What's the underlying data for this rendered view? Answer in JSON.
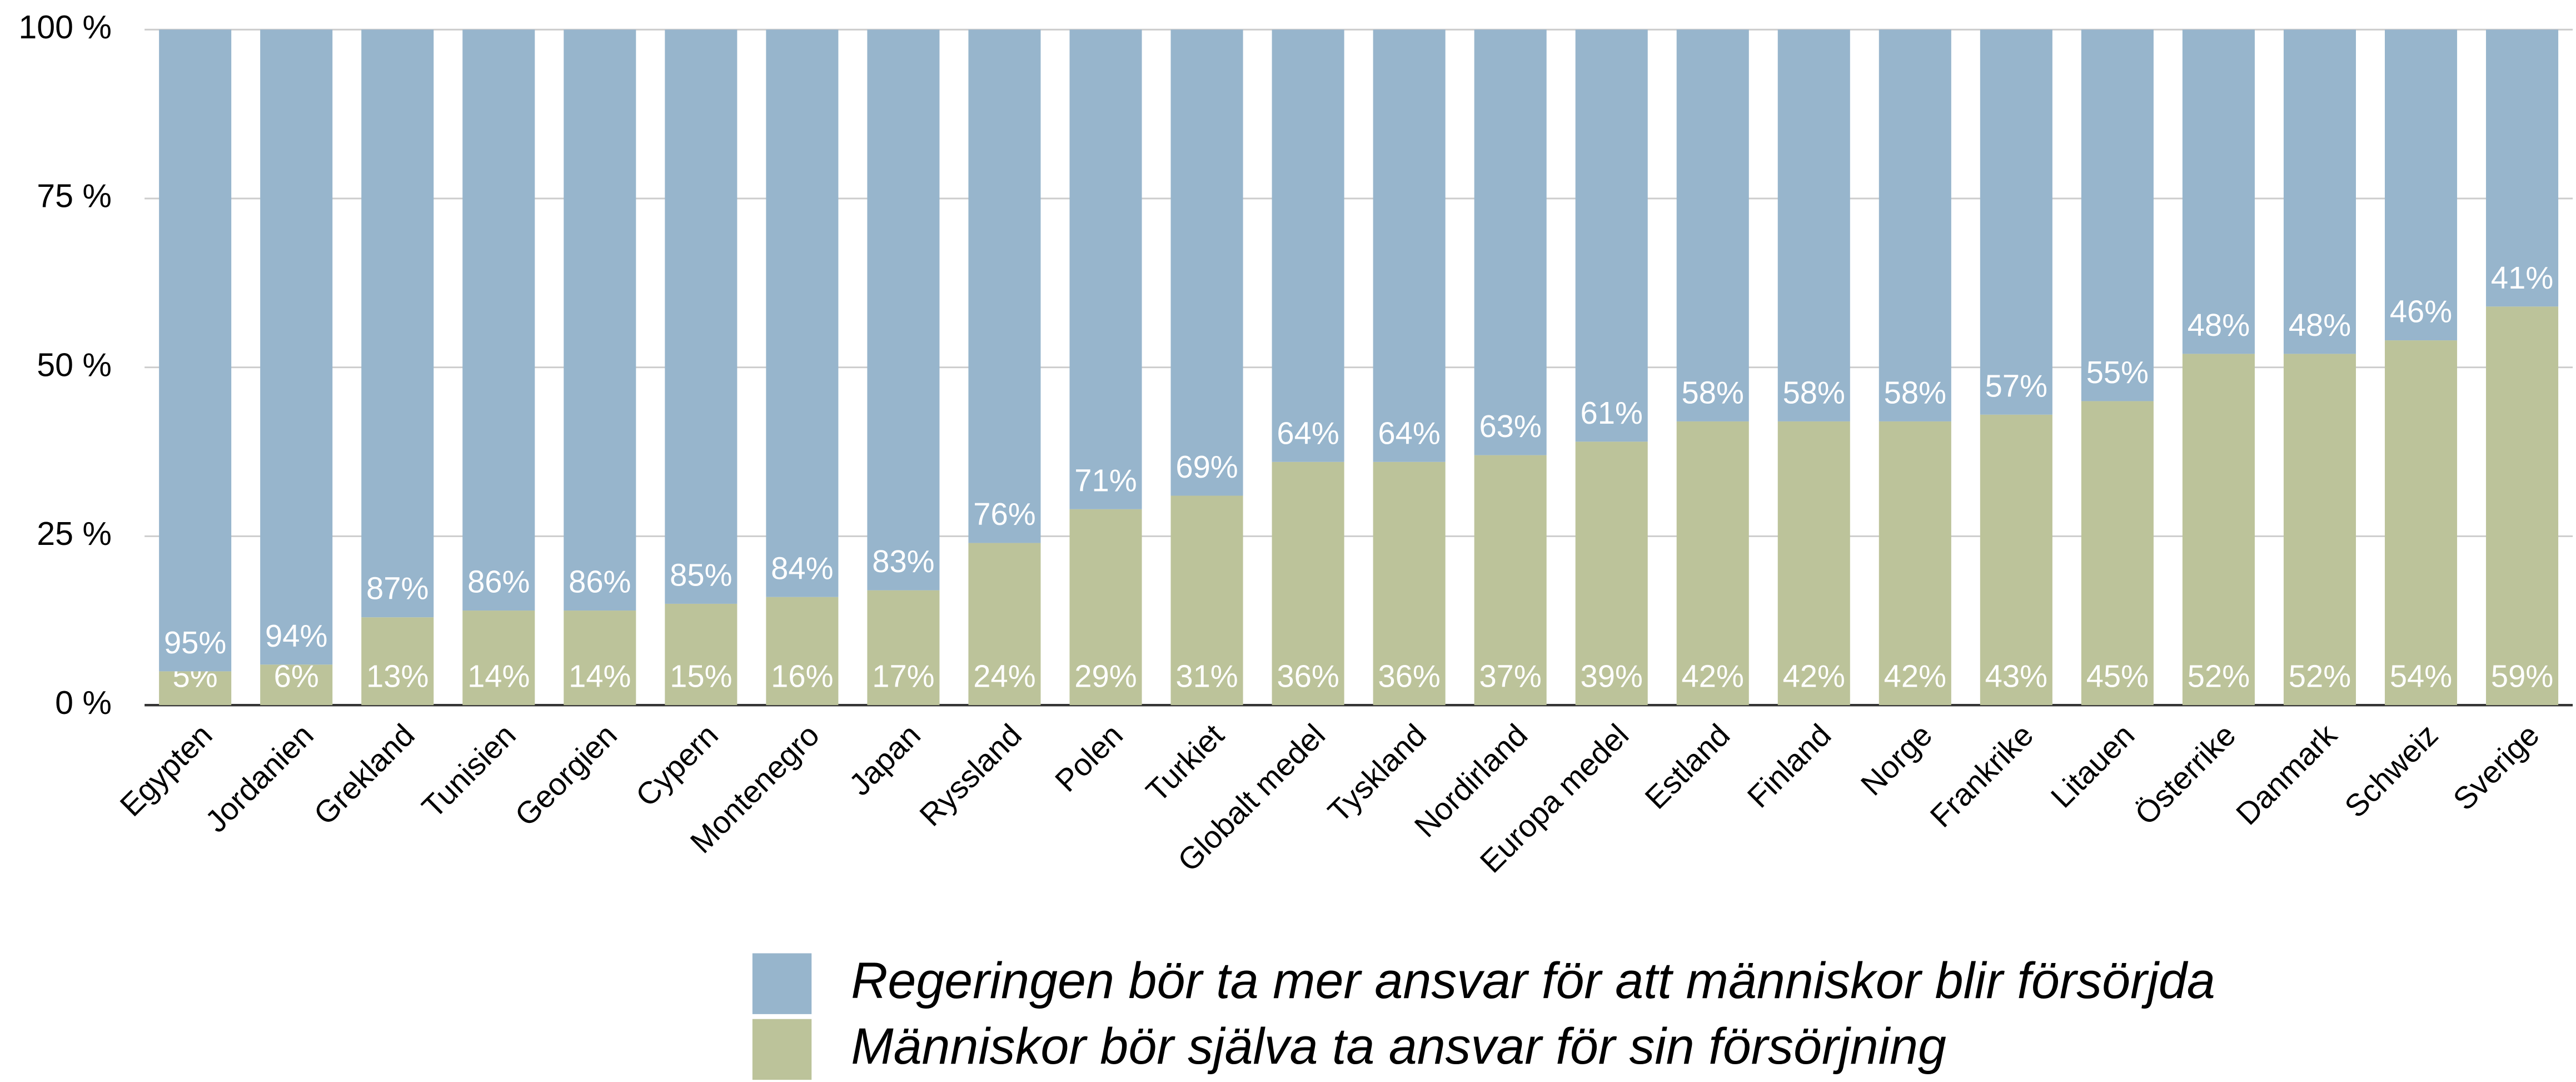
{
  "chart_data": {
    "type": "stacked_bar",
    "categories": [
      "Egypten",
      "Jordanien",
      "Grekland",
      "Tunisien",
      "Georgien",
      "Cypern",
      "Montenegro",
      "Japan",
      "Ryssland",
      "Polen",
      "Turkiet",
      "Globalt medel",
      "Tyskland",
      "Nordirland",
      "Europa medel",
      "Estland",
      "Finland",
      "Norge",
      "Frankrike",
      "Litauen",
      "Österrike",
      "Danmark",
      "Schweiz",
      "Sverige"
    ],
    "series": [
      {
        "name": "Regeringen bör ta mer ansvar för att människor blir försörjda",
        "color": "#97b5cc",
        "values": [
          95,
          94,
          87,
          86,
          86,
          85,
          84,
          83,
          76,
          71,
          69,
          64,
          64,
          63,
          61,
          58,
          58,
          58,
          57,
          55,
          48,
          48,
          46,
          41
        ],
        "value_labels": [
          "95%",
          "94%",
          "87%",
          "86%",
          "86%",
          "85%",
          "84%",
          "83%",
          "76%",
          "71%",
          "69%",
          "64%",
          "64%",
          "63%",
          "61%",
          "58%",
          "58%",
          "58%",
          "57%",
          "55%",
          "48%",
          "48%",
          "46%",
          "41%"
        ]
      },
      {
        "name": "Människor bör själva ta ansvar för sin försörjning",
        "color": "#bcc39a",
        "values": [
          5,
          6,
          13,
          14,
          14,
          15,
          16,
          17,
          24,
          29,
          31,
          36,
          36,
          37,
          39,
          42,
          42,
          42,
          43,
          45,
          52,
          52,
          54,
          59
        ],
        "value_labels": [
          "5%",
          "6%",
          "13%",
          "14%",
          "14%",
          "15%",
          "16%",
          "17%",
          "24%",
          "29%",
          "31%",
          "36%",
          "36%",
          "37%",
          "39%",
          "42%",
          "42%",
          "42%",
          "43%",
          "45%",
          "52%",
          "52%",
          "54%",
          "59%"
        ]
      }
    ],
    "ylim": [
      0,
      100
    ],
    "yticks": [
      {
        "value": 0,
        "label": "0 %"
      },
      {
        "value": 25,
        "label": "25 %"
      },
      {
        "value": 50,
        "label": "50 %"
      },
      {
        "value": 75,
        "label": "75 %"
      },
      {
        "value": 100,
        "label": "100 %"
      }
    ],
    "grid": true
  }
}
